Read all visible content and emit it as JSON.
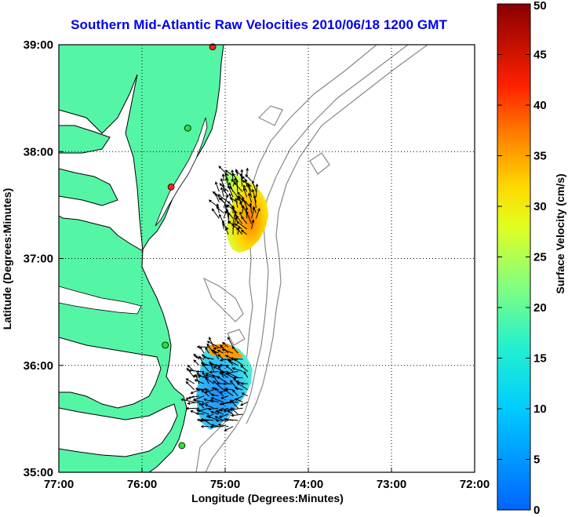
{
  "title": "Southern Mid-Atlantic Raw Velocities 2010/06/18 1200 GMT",
  "map": {
    "lon_range": [
      -77,
      -72
    ],
    "lat_range": [
      35,
      39
    ],
    "x_ticks": [
      "77:00",
      "76:00",
      "75:00",
      "74:00",
      "73:00",
      "72:00"
    ],
    "y_ticks": [
      "39:00",
      "38:00",
      "37:00",
      "36:00",
      "35:00"
    ],
    "xlabel": "Longitude (Degrees:Minutes)",
    "ylabel": "Latitude (Degrees:Minutes)",
    "grid": true,
    "land_color": "#55f5a6",
    "bathymetry_color": "#888888",
    "stations": [
      {
        "lon": -75.15,
        "lat": 38.98,
        "color": "#ff2020"
      },
      {
        "lon": -75.45,
        "lat": 38.22,
        "color": "#30e030"
      },
      {
        "lon": -75.65,
        "lat": 37.67,
        "color": "#ff2020"
      },
      {
        "lon": -75.72,
        "lat": 36.19,
        "color": "#30e030"
      },
      {
        "lon": -75.52,
        "lat": 35.25,
        "color": "#30e030"
      }
    ]
  },
  "colorbar": {
    "label": "Surface Velocity (cm/s)",
    "min": 0,
    "max": 50,
    "ticks": [
      "0",
      "5",
      "10",
      "15",
      "20",
      "25",
      "30",
      "35",
      "40",
      "45",
      "50"
    ]
  },
  "velocity_regions": [
    {
      "lon_range": [
        -75.1,
        -74.6
      ],
      "lat_range": [
        37.2,
        37.8
      ],
      "speed": 28
    },
    {
      "lon_range": [
        -75.4,
        -74.7
      ],
      "lat_range": [
        35.4,
        36.2
      ],
      "speed": 10
    }
  ]
}
